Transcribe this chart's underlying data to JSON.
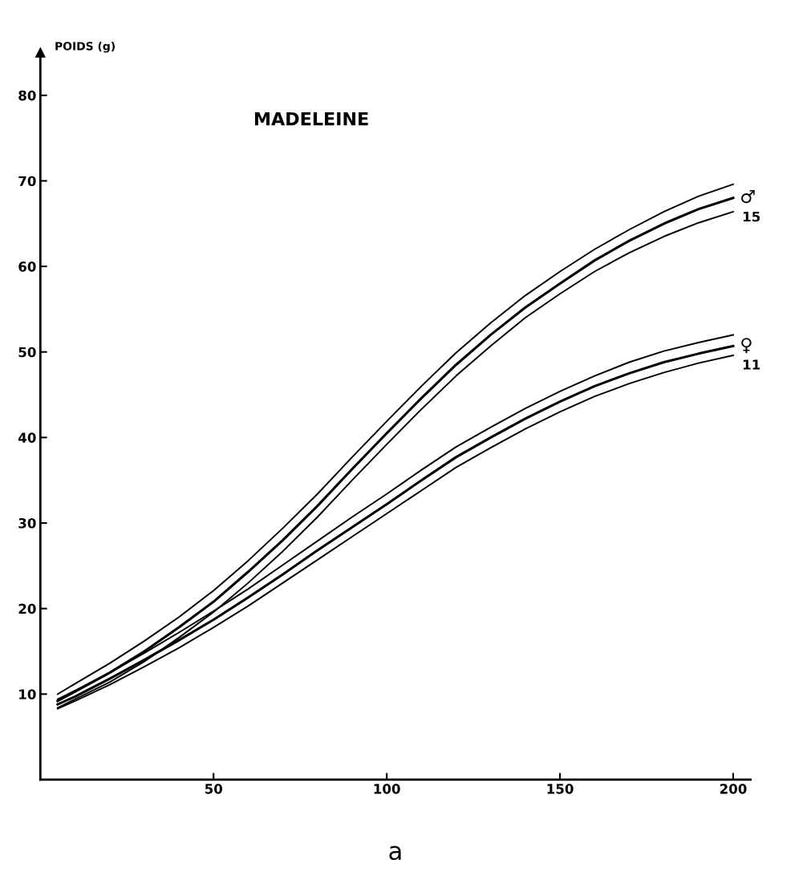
{
  "chart_data": {
    "type": "line",
    "title": "MADELEINE",
    "xlabel": "a",
    "ylabel": "POIDS (g)",
    "x": [
      5,
      10,
      20,
      30,
      40,
      50,
      60,
      70,
      80,
      90,
      100,
      110,
      120,
      130,
      140,
      150,
      160,
      170,
      180,
      190,
      200
    ],
    "series": [
      {
        "name": "♂",
        "color": "#000000",
        "values": [
          9.2,
          10.3,
          12.5,
          15,
          17.8,
          20.8,
          24.3,
          28,
          32,
          36.3,
          40.5,
          44.6,
          48.5,
          52,
          55.2,
          58,
          60.7,
          63,
          65,
          66.7,
          68
        ]
      },
      {
        "color": "#000000",
        "values": [
          8.4,
          9.4,
          11.4,
          13.8,
          16.6,
          19.6,
          23,
          26.7,
          30.7,
          35,
          39.2,
          43.3,
          47.2,
          50.7,
          54,
          56.8,
          59.4,
          61.6,
          63.5,
          65.1,
          66.4
        ]
      },
      {
        "color": "#000000",
        "values": [
          10,
          11.2,
          13.6,
          16.2,
          19,
          22.1,
          25.6,
          29.4,
          33.4,
          37.7,
          41.9,
          46,
          49.9,
          53.4,
          56.6,
          59.4,
          62,
          64.3,
          66.4,
          68.2,
          69.6
        ]
      },
      {
        "name": "♀",
        "color": "#000000",
        "values": [
          8.8,
          9.7,
          11.8,
          14,
          16.3,
          18.7,
          21.3,
          24,
          26.8,
          29.5,
          32.2,
          35,
          37.7,
          40,
          42.2,
          44.2,
          46,
          47.5,
          48.8,
          49.8,
          50.7
        ]
      },
      {
        "color": "#000000",
        "values": [
          8.3,
          9.2,
          11.1,
          13.2,
          15.4,
          17.8,
          20.3,
          23,
          25.7,
          28.4,
          31.1,
          33.8,
          36.5,
          38.8,
          41,
          43,
          44.8,
          46.3,
          47.6,
          48.7,
          49.6
        ]
      },
      {
        "color": "#000000",
        "values": [
          9.4,
          10.4,
          12.5,
          14.8,
          17.2,
          19.7,
          22.3,
          25.1,
          27.9,
          30.7,
          33.4,
          36.2,
          38.9,
          41.2,
          43.4,
          45.4,
          47.2,
          48.8,
          50.1,
          51.1,
          52
        ]
      }
    ],
    "annotations": [
      "15",
      "11"
    ],
    "xlim": [
      0,
      205
    ],
    "ylim": [
      0,
      85
    ],
    "xticks": [
      50,
      100,
      150,
      200
    ],
    "yticks": [
      10,
      20,
      30,
      40,
      50,
      60,
      70,
      80
    ],
    "grid": false,
    "legend": false,
    "marker": "none",
    "line_style": "solid"
  }
}
